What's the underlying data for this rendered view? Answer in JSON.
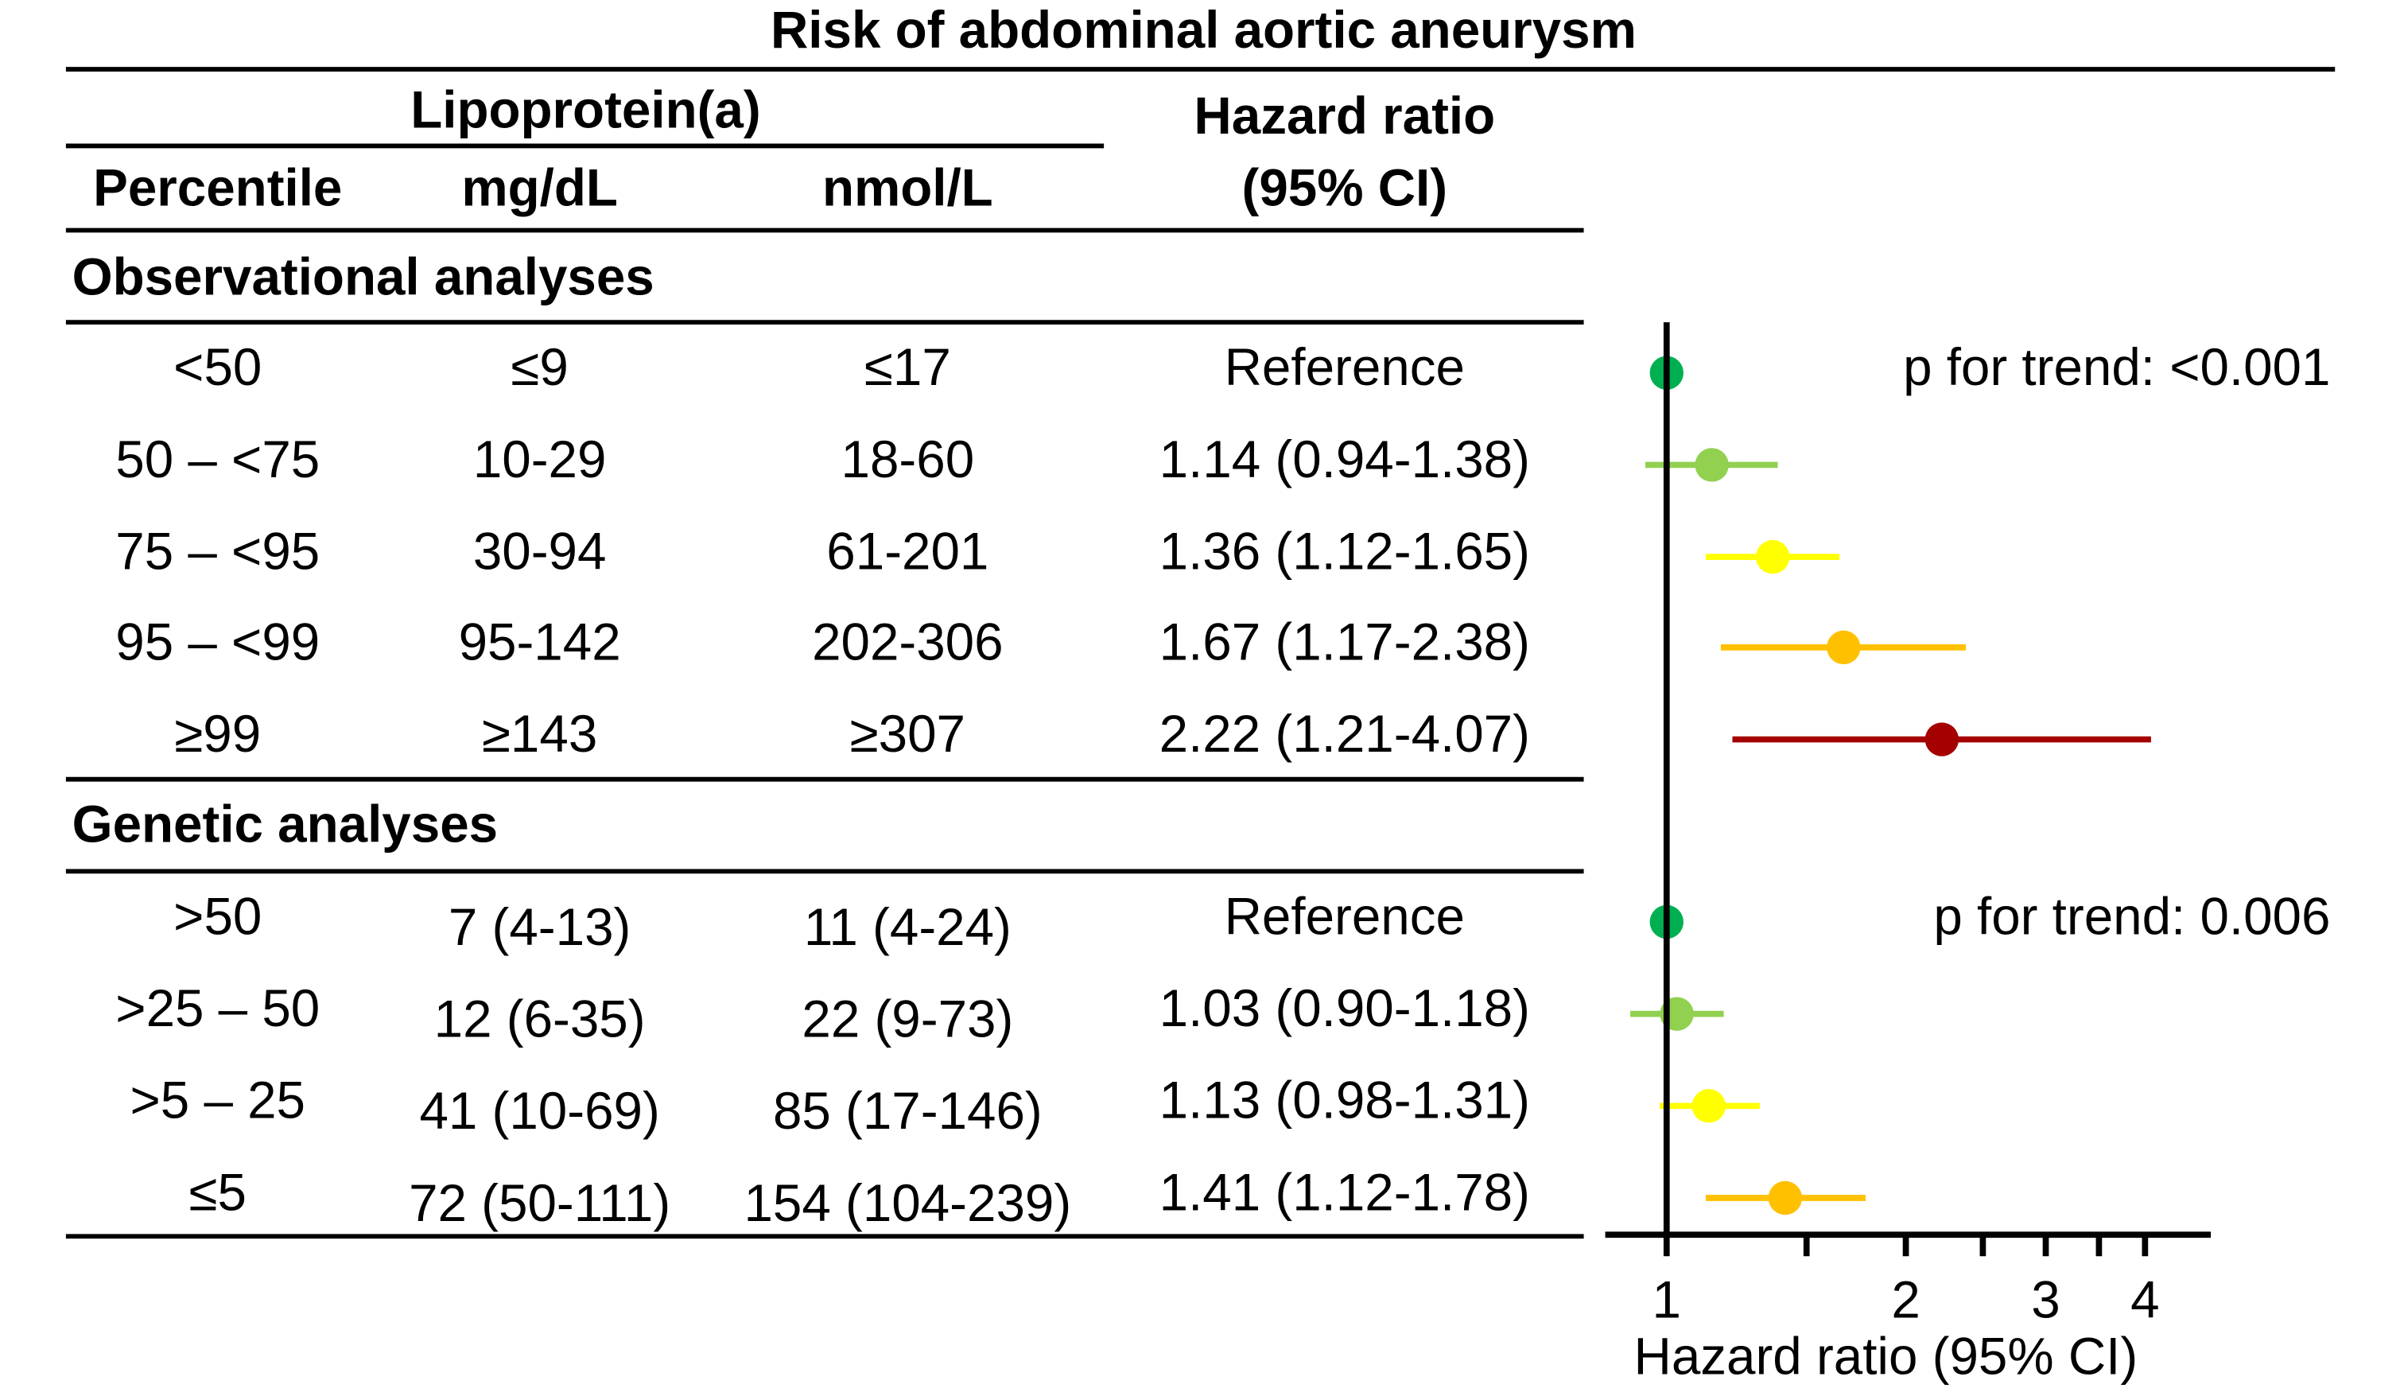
{
  "chart_data": {
    "type": "forest",
    "title": "Risk of abdominal aortic aneurysm",
    "group_header": "Lipoprotein(a)",
    "hr_header": [
      "Hazard ratio",
      "(95% CI)"
    ],
    "columns": [
      "Percentile",
      "mg/dL",
      "nmol/L"
    ],
    "x_label": "Hazard ratio (95% CI)",
    "log_x": true,
    "xlim": [
      0.837,
      4.84
    ],
    "xticks": [
      1,
      2,
      3,
      4
    ],
    "minor_xticks": [
      1.5,
      2.5,
      3.5
    ],
    "sections": [
      {
        "name": "Observational analyses",
        "p_trend": "p for trend: <0.001",
        "rows": [
          {
            "percentile": "<50",
            "mgdl": "≤9",
            "nmol": "≤17",
            "hr_label": "Reference",
            "hr": 1,
            "lo": null,
            "hi": null,
            "color": "#00b050"
          },
          {
            "percentile": "50 – <75",
            "mgdl": "10-29",
            "nmol": "18-60",
            "hr_label": "1.14 (0.94-1.38)",
            "hr": 1.14,
            "lo": 0.94,
            "hi": 1.38,
            "color": "#92d050"
          },
          {
            "percentile": "75 – <95",
            "mgdl": "30-94",
            "nmol": "61-201",
            "hr_label": "1.36 (1.12-1.65)",
            "hr": 1.36,
            "lo": 1.12,
            "hi": 1.65,
            "color": "#ffff00"
          },
          {
            "percentile": "95 – <99",
            "mgdl": "95-142",
            "nmol": "202-306",
            "hr_label": "1.67 (1.17-2.38)",
            "hr": 1.67,
            "lo": 1.17,
            "hi": 2.38,
            "color": "#ffc000"
          },
          {
            "percentile": "≥99",
            "mgdl": "≥143",
            "nmol": "≥307",
            "hr_label": "2.22 (1.21-4.07)",
            "hr": 2.22,
            "lo": 1.21,
            "hi": 4.07,
            "color": "#a50000"
          }
        ]
      },
      {
        "name": "Genetic analyses",
        "p_trend": "p for trend: 0.006",
        "rows": [
          {
            "percentile": ">50",
            "mgdl": "7 (4-13)",
            "nmol": "11 (4-24)",
            "hr_label": "Reference",
            "hr": 1,
            "lo": null,
            "hi": null,
            "color": "#00b050"
          },
          {
            "percentile": ">25 – 50",
            "mgdl": "12 (6-35)",
            "nmol": "22 (9-73)",
            "hr_label": "1.03 (0.90-1.18)",
            "hr": 1.03,
            "lo": 0.9,
            "hi": 1.18,
            "color": "#92d050"
          },
          {
            "percentile": ">5 – 25",
            "mgdl": "41 (10-69)",
            "nmol": "85 (17-146)",
            "hr_label": "1.13 (0.98-1.31)",
            "hr": 1.13,
            "lo": 0.98,
            "hi": 1.31,
            "color": "#ffff00"
          },
          {
            "percentile": "≤5",
            "mgdl": "72 (50-111)",
            "nmol": "154 (104-239)",
            "hr_label": "1.41 (1.12-1.78)",
            "hr": 1.41,
            "lo": 1.12,
            "hi": 1.78,
            "color": "#ffc000"
          }
        ]
      }
    ]
  }
}
